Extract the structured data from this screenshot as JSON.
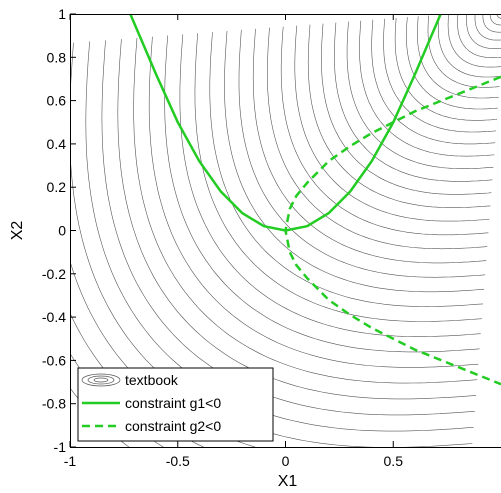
{
  "chart_data": {
    "type": "contour",
    "xlabel": "X1",
    "ylabel": "X2",
    "xlim": [
      -1,
      1
    ],
    "ylim": [
      -1,
      1
    ],
    "xticks": [
      {
        "value": -1,
        "label": "-1"
      },
      {
        "value": -0.5,
        "label": "-0.5"
      },
      {
        "value": 0,
        "label": "0"
      },
      {
        "value": 0.5,
        "label": "0.5"
      }
    ],
    "yticks": [
      {
        "value": 1,
        "label": "1"
      },
      {
        "value": 0.8,
        "label": "0.8"
      },
      {
        "value": 0.6,
        "label": "0.6"
      },
      {
        "value": 0.4,
        "label": "0.4"
      },
      {
        "value": 0.2,
        "label": "0.2"
      },
      {
        "value": 0,
        "label": "0"
      },
      {
        "value": -0.2,
        "label": "-0.2"
      },
      {
        "value": -0.4,
        "label": "-0.4"
      },
      {
        "value": -0.6,
        "label": "-0.6"
      },
      {
        "value": -0.8,
        "label": "-0.8"
      },
      {
        "value": -1,
        "label": "-1"
      }
    ],
    "series": [
      {
        "name": "textbook",
        "style": "contour",
        "color": "#555555"
      },
      {
        "name": "constraint g1<0",
        "style": "solid",
        "color": "#22cc22",
        "x": [
          -0.72,
          -0.6,
          -0.5,
          -0.4,
          -0.3,
          -0.2,
          -0.1,
          0,
          0.1,
          0.2,
          0.3,
          0.4,
          0.5,
          0.6,
          0.72
        ],
        "y": [
          1.0,
          0.72,
          0.5,
          0.32,
          0.18,
          0.08,
          0.02,
          0,
          0.02,
          0.08,
          0.18,
          0.32,
          0.5,
          0.72,
          1.0
        ]
      },
      {
        "name": "constraint g2<0",
        "style": "dashed",
        "color": "#22cc22",
        "x": [
          1.0,
          0.8,
          0.6,
          0.5,
          0.4,
          0.3,
          0.2,
          0.1,
          0.05,
          0.02,
          0,
          0.02,
          0.05,
          0.1,
          0.2,
          0.3,
          0.4,
          0.5,
          0.6,
          0.8,
          1.0
        ],
        "y": [
          0.71,
          0.63,
          0.55,
          0.5,
          0.45,
          0.39,
          0.32,
          0.22,
          0.16,
          0.1,
          0,
          -0.1,
          -0.16,
          -0.22,
          -0.32,
          -0.39,
          -0.45,
          -0.5,
          -0.55,
          -0.63,
          -0.71
        ]
      }
    ],
    "legend_position": "bottom-left",
    "grid": false
  }
}
